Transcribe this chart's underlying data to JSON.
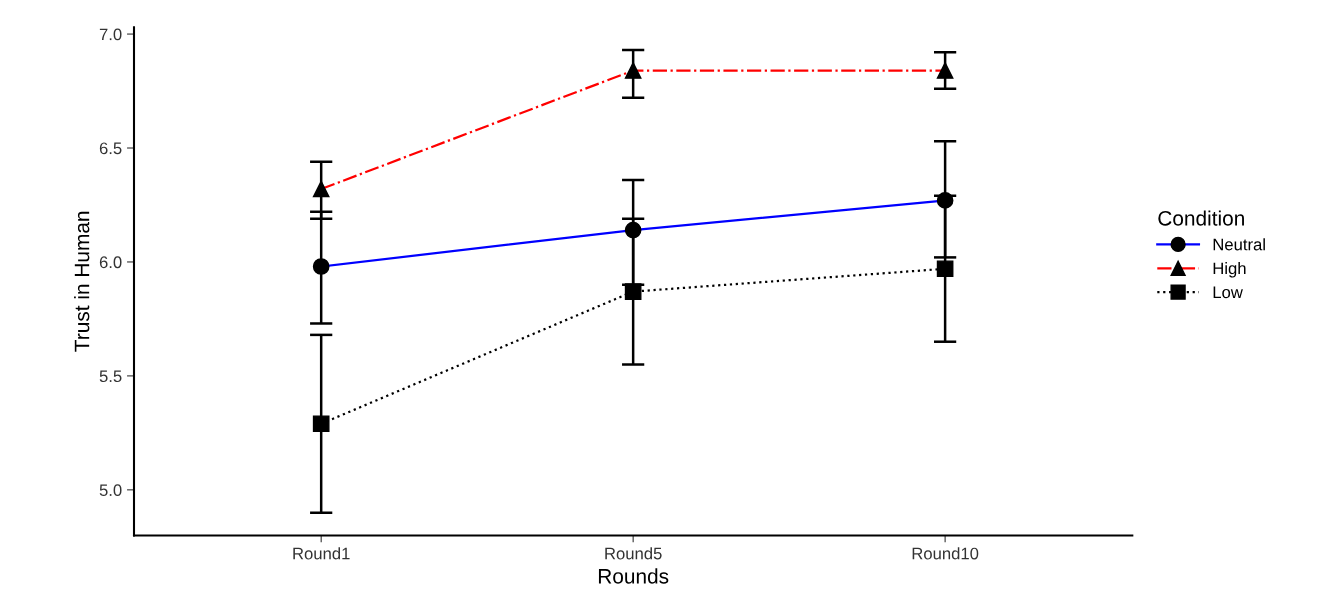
{
  "chart_data": {
    "type": "line",
    "xlabel": "Rounds",
    "ylabel": "Trust in Human",
    "legend_title": "Condition",
    "categories": [
      "Round1",
      "Round5",
      "Round10"
    ],
    "series": [
      {
        "name": "Neutral",
        "color": "#0000ff",
        "values": [
          5.98,
          6.14,
          6.27
        ],
        "errors": [
          [
            5.73,
            6.22
          ],
          [
            5.9,
            6.36
          ],
          [
            6.02,
            6.53
          ]
        ],
        "marker": "circle",
        "line_style": "solid"
      },
      {
        "name": "High",
        "color": "#ff0000",
        "values": [
          6.32,
          6.84,
          6.84
        ],
        "errors": [
          [
            6.19,
            6.44
          ],
          [
            6.72,
            6.93
          ],
          [
            6.76,
            6.92
          ]
        ],
        "marker": "triangle",
        "line_style": "dashdot"
      },
      {
        "name": "Low",
        "color": "#000000",
        "values": [
          5.29,
          5.87,
          5.97
        ],
        "errors": [
          [
            4.9,
            5.68
          ],
          [
            5.55,
            6.19
          ],
          [
            5.65,
            6.29
          ]
        ],
        "marker": "square",
        "line_style": "dotted"
      }
    ],
    "ylim": [
      4.8,
      7.03
    ],
    "yticks": [
      {
        "value": 5,
        "label": "5.0"
      },
      {
        "value": 5.5,
        "label": "5.5"
      },
      {
        "value": 6,
        "label": "6.0"
      },
      {
        "value": 6.5,
        "label": "6.5"
      },
      {
        "value": 7,
        "label": "7.0"
      }
    ],
    "grid": false,
    "legend": "right"
  }
}
